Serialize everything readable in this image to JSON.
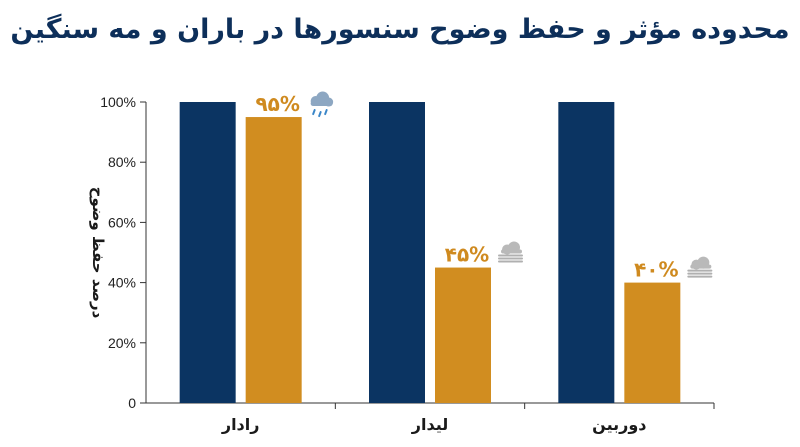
{
  "chart_data": {
    "type": "bar",
    "title": "محدوده مؤثر و حفظ وضوح سنسورها در باران و مه سنگین",
    "ylabel": "درصد حفظ وضوح",
    "xlabel": "",
    "ylim": [
      0,
      100
    ],
    "yticks": [
      {
        "value": 0,
        "label": "0"
      },
      {
        "value": 20,
        "label": "20%"
      },
      {
        "value": 40,
        "label": "40%"
      },
      {
        "value": 60,
        "label": "60%"
      },
      {
        "value": 80,
        "label": "80%"
      },
      {
        "value": 100,
        "label": "100%"
      }
    ],
    "categories": [
      "رادار",
      "لیدار",
      "دوربین"
    ],
    "series": [
      {
        "values": [
          100,
          100,
          100
        ],
        "color": "#0b3462"
      },
      {
        "values": [
          95,
          45,
          40
        ],
        "color": "#d18d20"
      }
    ],
    "data_labels": [
      "۹۵%",
      "۴۵%",
      "۴۰%"
    ],
    "annotation_icons": [
      "rain-cloud-icon",
      "fog-icon",
      "fog-icon"
    ],
    "grid": false
  }
}
